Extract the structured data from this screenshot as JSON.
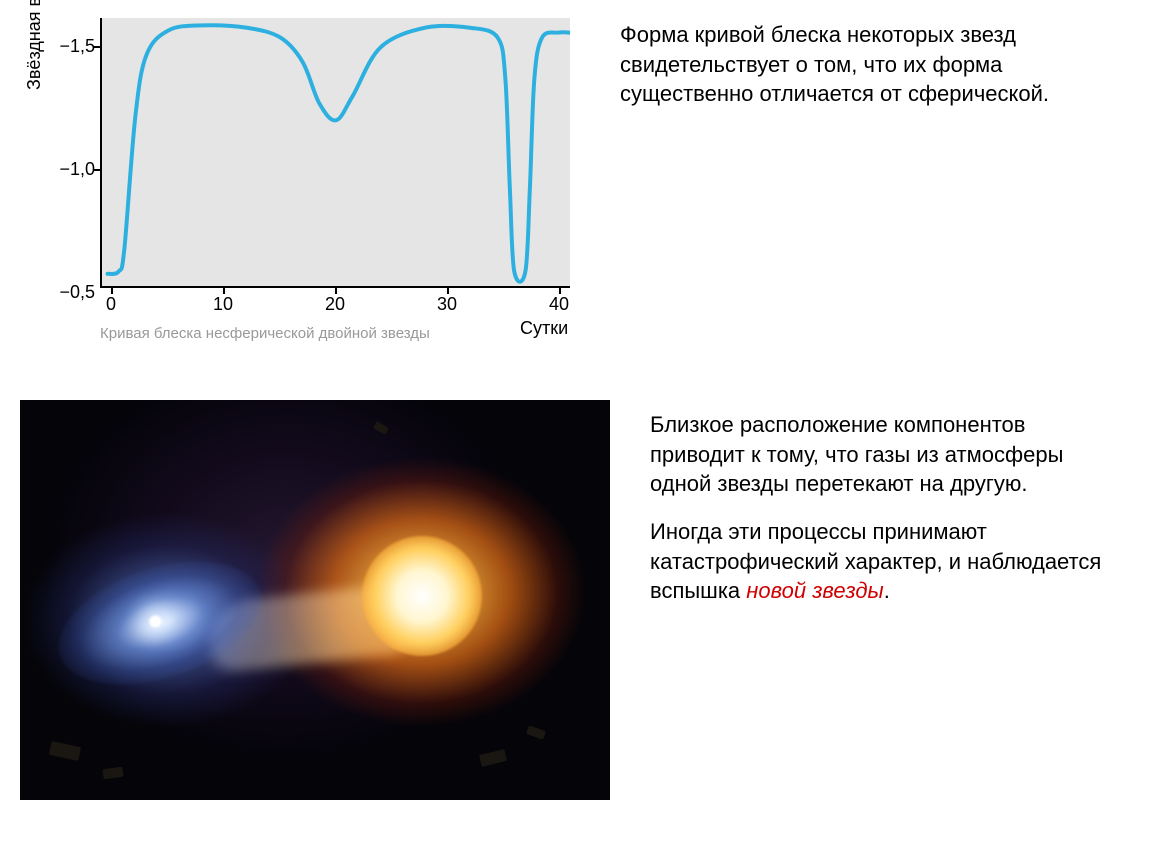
{
  "chart": {
    "type": "line",
    "y_label": "Звёздная величина",
    "x_label": "Сутки",
    "caption": "Кривая блеска несферической двойной звезды",
    "y_ticks": [
      "−1,5",
      "−1,0",
      "−0,5"
    ],
    "y_tick_values": [
      -1.5,
      -1.0,
      -0.5
    ],
    "x_ticks": [
      "0",
      "10",
      "20",
      "30",
      "40"
    ],
    "x_tick_values": [
      0,
      10,
      20,
      30,
      40
    ],
    "xlim": [
      -1,
      41
    ],
    "ylim": [
      -0.5,
      -1.6
    ],
    "line_color": "#2db0e0",
    "line_width": 4,
    "background_color": "#e5e5e5",
    "axis_color": "#000000",
    "data_x": [
      -0.5,
      0.5,
      1,
      2,
      3,
      5,
      8,
      12,
      15,
      17,
      18.5,
      20,
      21.5,
      24,
      28,
      32,
      34.5,
      35.2,
      35.6,
      36,
      37,
      37.4,
      37.8,
      38.5,
      40,
      41
    ],
    "data_y": [
      -0.55,
      -0.56,
      -0.65,
      -1.2,
      -1.45,
      -1.55,
      -1.57,
      -1.56,
      -1.52,
      -1.42,
      -1.25,
      -1.18,
      -1.28,
      -1.48,
      -1.56,
      -1.56,
      -1.52,
      -1.35,
      -0.9,
      -0.56,
      -0.56,
      -0.9,
      -1.35,
      -1.52,
      -1.54,
      -1.54
    ],
    "label_fontsize": 18,
    "caption_fontsize": 15,
    "caption_color": "#999999"
  },
  "top_paragraph": "Форма кривой блеска некоторых звезд свидетельствует о том, что их форма существенно отличается от сферической.",
  "bottom_paragraph_1": "Близкое расположение компонентов приводит к тому, что газы из атмосферы одной звезды перетекают на другую.",
  "bottom_paragraph_2a": "Иногда эти процессы принимают катастрофический характер, и наблюдается вспышка ",
  "bottom_paragraph_2_emph": "новой звезды",
  "bottom_paragraph_2b": ".",
  "emphasis_color": "#d00000",
  "text_fontsize": 22,
  "text_color": "#000000"
}
